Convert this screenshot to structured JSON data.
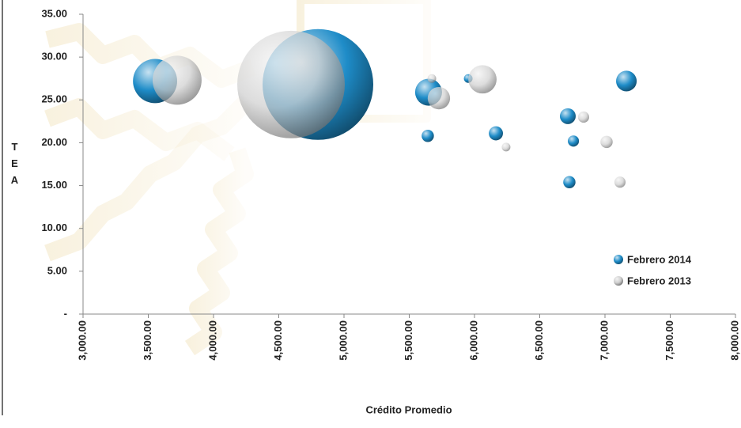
{
  "chart_data": {
    "type": "bubble",
    "x_label": "Crédito Promedio",
    "y_label": "TEA",
    "xlim": [
      3000,
      8000
    ],
    "xticks": [
      {
        "value": 3000,
        "label": "3,000.00"
      },
      {
        "value": 3500,
        "label": "3,500.00"
      },
      {
        "value": 4000,
        "label": "4,000.00"
      },
      {
        "value": 4500,
        "label": "4,500.00"
      },
      {
        "value": 5000,
        "label": "5,000.00"
      },
      {
        "value": 5500,
        "label": "5,500.00"
      },
      {
        "value": 6000,
        "label": "6,000.00"
      },
      {
        "value": 6500,
        "label": "6,500.00"
      },
      {
        "value": 7000,
        "label": "7,000.00"
      },
      {
        "value": 7500,
        "label": "7,500.00"
      },
      {
        "value": 8000,
        "label": "8,000.00"
      }
    ],
    "ylim": [
      0,
      35
    ],
    "yticks": [
      {
        "value": 0,
        "label": "-"
      },
      {
        "value": 5,
        "label": "5.00"
      },
      {
        "value": 10,
        "label": "10.00"
      },
      {
        "value": 15,
        "label": "15.00"
      },
      {
        "value": 20,
        "label": "20.00"
      },
      {
        "value": 25,
        "label": "25.00"
      },
      {
        "value": 30,
        "label": "30.00"
      },
      {
        "value": 35,
        "label": "35.00"
      }
    ],
    "legend": "bottom-right",
    "series": [
      {
        "name": "Febrero 2014",
        "color": "#1e8cc8",
        "x": [
          3552,
          4800,
          5648,
          5642,
          5952,
          6164,
          6715,
          6758,
          6727,
          7164
        ],
        "values": [
          27.2,
          26.8,
          25.9,
          20.8,
          27.5,
          21.1,
          23.1,
          20.2,
          15.4,
          27.2
        ],
        "sizes": [
          78,
          490,
          29,
          6,
          3,
          8,
          10,
          5,
          6,
          17
        ]
      },
      {
        "name": "Febrero 2013",
        "color": "#cfcfcf",
        "x": [
          3721,
          4594,
          5727,
          5673,
          6061,
          6242,
          6836,
          7012,
          7115
        ],
        "values": [
          27.3,
          26.8,
          25.2,
          27.5,
          27.4,
          19.5,
          23.0,
          20.1,
          15.4
        ],
        "sizes": [
          96,
          462,
          20,
          3,
          32,
          3,
          5,
          6,
          5
        ]
      }
    ]
  }
}
